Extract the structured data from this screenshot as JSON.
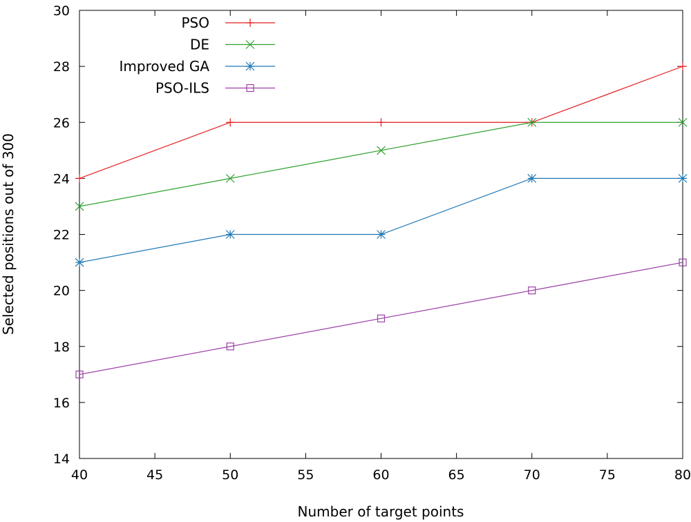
{
  "chart_data": {
    "type": "line",
    "title": "",
    "xlabel": "Number of target points",
    "ylabel": "Selected positions out of 300",
    "xlim": [
      40,
      80
    ],
    "ylim": [
      14,
      30
    ],
    "xticks": [
      40,
      45,
      50,
      55,
      60,
      65,
      70,
      75,
      80
    ],
    "yticks": [
      14,
      16,
      18,
      20,
      22,
      24,
      26,
      28,
      30
    ],
    "grid": false,
    "legend_position": "top-left",
    "x": [
      40,
      50,
      60,
      70,
      80
    ],
    "series": [
      {
        "name": "PSO",
        "values": [
          24,
          26,
          26,
          26,
          28
        ],
        "color": "#e41a1c",
        "marker": "plus"
      },
      {
        "name": "DE",
        "values": [
          23,
          24,
          25,
          26,
          26
        ],
        "color": "#2ca02c",
        "marker": "cross"
      },
      {
        "name": "Improved GA",
        "values": [
          21,
          22,
          22,
          24,
          24
        ],
        "color": "#1f77b4",
        "marker": "star"
      },
      {
        "name": "PSO-ILS",
        "values": [
          17,
          18,
          19,
          20,
          21
        ],
        "color": "#9b3fa6",
        "marker": "square"
      }
    ]
  }
}
